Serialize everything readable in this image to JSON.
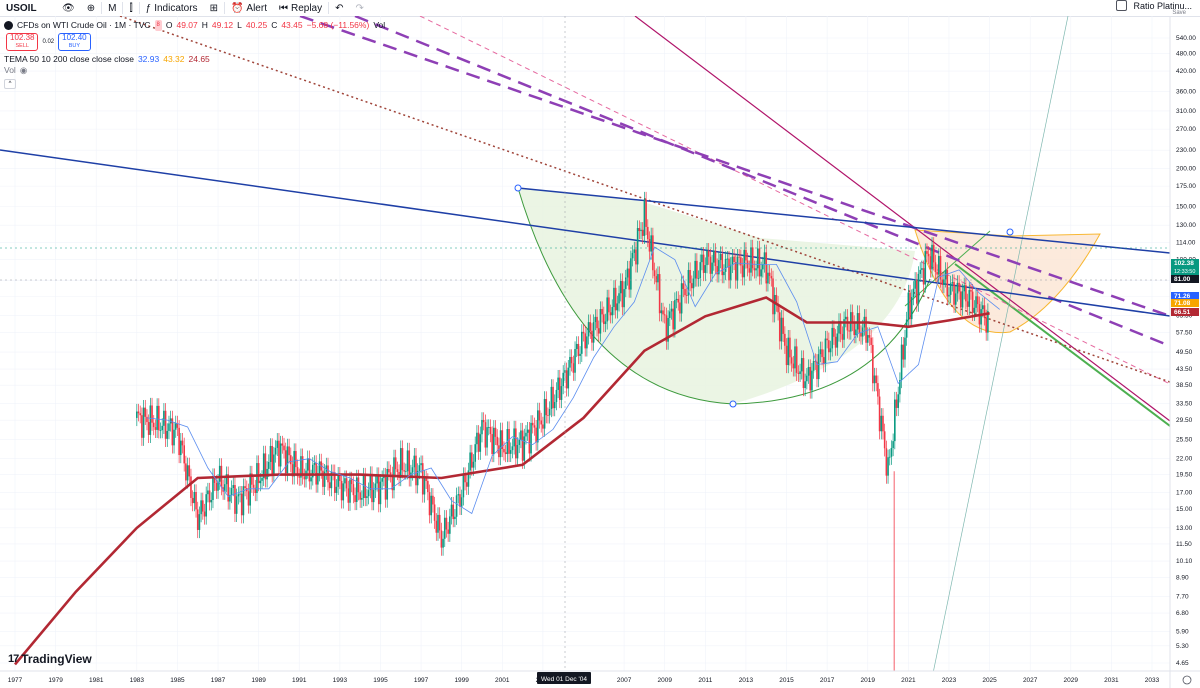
{
  "toolbar": {
    "symbol": "USOIL",
    "interval": "M",
    "indicators_label": "Indicators",
    "alert_label": "Alert",
    "replay_label": "Replay",
    "right_title": "Ratio Platinu...",
    "right_sub": "Save"
  },
  "legend": {
    "instrument": "CFDs on WTI Crude Oil · 1M · TVC",
    "badge": "8",
    "o_label": "O",
    "o_val": "49.07",
    "h_label": "H",
    "h_val": "49.12",
    "l_label": "L",
    "l_val": "40.25",
    "c_label": "C",
    "c_val": "43.45",
    "change": "−5.68 (−11.56%)",
    "vol_suffix": "Vol",
    "sell_price": "102.38",
    "sell_label": "SELL",
    "spread": "0.02",
    "buy_price": "102.40",
    "buy_label": "BUY",
    "tema_label": "TEMA 50 10 200 close close close",
    "tema_v1": "32.93",
    "tema_v2": "43.32",
    "tema_v3": "24.65",
    "vol_label": "Vol"
  },
  "brand": "TradingView",
  "chart_data": {
    "type": "line",
    "symbol": "USOIL",
    "scale": "log",
    "ylim": [
      4.5,
      560
    ],
    "y_ticks": [
      "540.00",
      "480.00",
      "420.00",
      "360.00",
      "310.00",
      "270.00",
      "230.00",
      "200.00",
      "175.00",
      "150.00",
      "130.00",
      "114.00",
      "100.00",
      "85.50",
      "75.50",
      "65.50",
      "57.50",
      "49.50",
      "43.50",
      "38.50",
      "33.50",
      "29.50",
      "25.50",
      "22.00",
      "19.50",
      "17.00",
      "15.00",
      "13.00",
      "11.50",
      "10.10",
      "8.90",
      "7.70",
      "6.80",
      "5.90",
      "5.30",
      "4.65"
    ],
    "x_ticks": [
      "1977",
      "1979",
      "1981",
      "1983",
      "1985",
      "1987",
      "1989",
      "1991",
      "1993",
      "1995",
      "1997",
      "1999",
      "2001",
      "2003",
      "2007",
      "2009",
      "2011",
      "2013",
      "2015",
      "2017",
      "2019",
      "2021",
      "2023",
      "2025",
      "2027",
      "2029",
      "2031",
      "2033"
    ],
    "x_cursor_label": "Wed 01 Dec '04",
    "price_labels": [
      {
        "value": "102.38",
        "sub": "12:33:50",
        "color": "#089981"
      },
      {
        "value": "81.00",
        "color": "#131722"
      },
      {
        "value": "71.26",
        "color": "#2962ff"
      },
      {
        "value": "71.08",
        "color": "#f7a600"
      },
      {
        "value": "66.51",
        "color": "#b22833"
      }
    ],
    "series": [
      {
        "name": "Price",
        "x": [
          1983,
          1984,
          1985,
          1986,
          1987,
          1988,
          1989,
          1990,
          1991,
          1992,
          1993,
          1994,
          1995,
          1996,
          1997,
          1998,
          1999,
          2000,
          2001,
          2002,
          2003,
          2004,
          2005,
          2006,
          2007,
          2008,
          2009,
          2010,
          2011,
          2012,
          2013,
          2014,
          2015,
          2016,
          2017,
          2018,
          2019,
          2020,
          2021,
          2022,
          2023,
          2024,
          2025
        ],
        "y": [
          30,
          29,
          27,
          14,
          19,
          16,
          19,
          24,
          20,
          20,
          18,
          17,
          18,
          21,
          20,
          12,
          17,
          28,
          24,
          25,
          30,
          40,
          55,
          65,
          80,
          140,
          60,
          80,
          100,
          95,
          98,
          95,
          50,
          40,
          52,
          62,
          58,
          20,
          70,
          105,
          80,
          75,
          62
        ]
      },
      {
        "name": "TEMA 200",
        "x": [
          1977,
          1980,
          1983,
          1986,
          1990,
          1994,
          1998,
          2002,
          2005,
          2008,
          2011,
          2014,
          2016,
          2019,
          2021,
          2023,
          2025
        ],
        "y": [
          4.6,
          8,
          13,
          19,
          19.5,
          19.5,
          19,
          21,
          30,
          50,
          65,
          75,
          62,
          62,
          60,
          63,
          66.5
        ]
      }
    ],
    "grid": true
  },
  "colors": {
    "up": "#089981",
    "down": "#f23645",
    "trend_blue": "#1e3fa6",
    "trend_magenta": "#b0146a",
    "trend_purple": "#8e3fb5",
    "trend_green": "#4caf50",
    "cup_fill": "#e8f3df",
    "cup_stroke": "#3d9a3d",
    "orange": "#f7a600",
    "ema_red": "#b22833"
  }
}
